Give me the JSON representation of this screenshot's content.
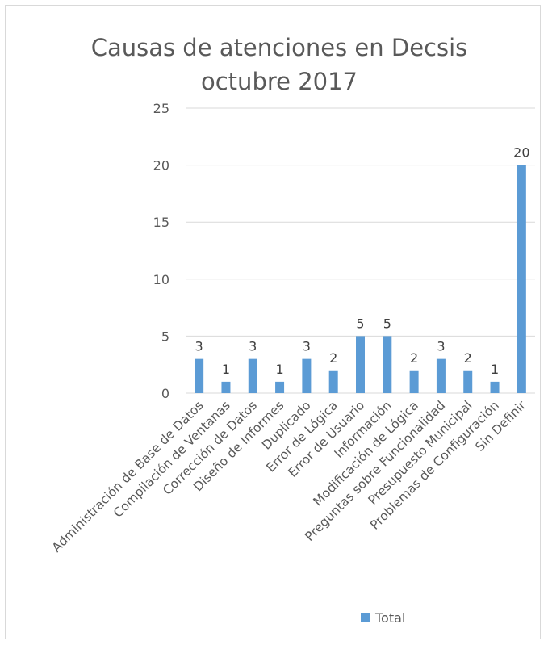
{
  "chart_data": {
    "type": "bar",
    "title": "Causas de atenciones en Decsis",
    "subtitle": "octubre 2017",
    "xlabel": "",
    "ylabel": "",
    "categories": [
      "Administración de Base de Datos",
      "Compilación de Ventanas",
      "Corrección de Datos",
      "Diseño de Informes",
      "Duplicado",
      "Error de Lógica",
      "Error de Usuario",
      "Información",
      "Modificación de Lógica",
      "Preguntas sobre Funcionalidad",
      "Presupuesto Municipal",
      "Problemas de Configuración",
      "Sin Definir"
    ],
    "series": [
      {
        "name": "Total",
        "values": [
          3,
          1,
          3,
          1,
          3,
          2,
          5,
          5,
          2,
          3,
          2,
          1,
          20
        ],
        "color": "#5b9bd5"
      }
    ],
    "ylim": [
      0,
      25
    ],
    "yticks": [
      0,
      5,
      10,
      15,
      20,
      25
    ],
    "grid": true,
    "data_labels": true,
    "legend_position": "bottom"
  }
}
